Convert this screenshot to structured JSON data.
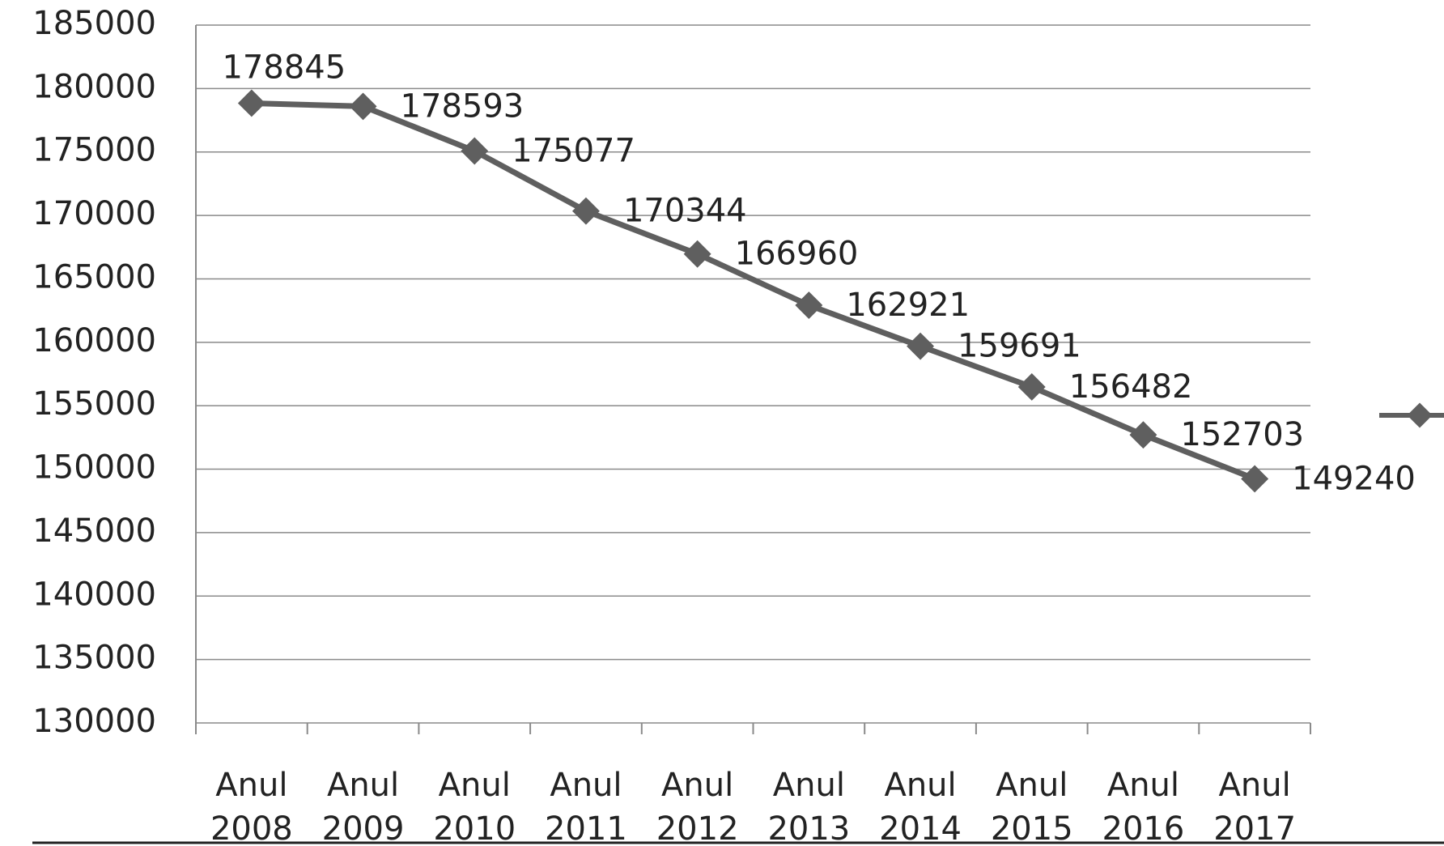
{
  "chart_data": {
    "type": "line",
    "categories": [
      "Anul 2008",
      "Anul 2009",
      "Anul 2010",
      "Anul 2011",
      "Anul 2012",
      "Anul 2013",
      "Anul 2014",
      "Anul 2015",
      "Anul 2016",
      "Anul 2017"
    ],
    "values": [
      178845,
      178593,
      175077,
      170344,
      166960,
      162921,
      159691,
      156482,
      152703,
      149240
    ],
    "color": "#5f5f5f",
    "ylim": [
      130000,
      185000
    ],
    "yticks": [
      130000,
      135000,
      140000,
      145000,
      150000,
      155000,
      160000,
      165000,
      170000,
      175000,
      180000,
      185000
    ],
    "grid": true,
    "data_labels": true
  }
}
